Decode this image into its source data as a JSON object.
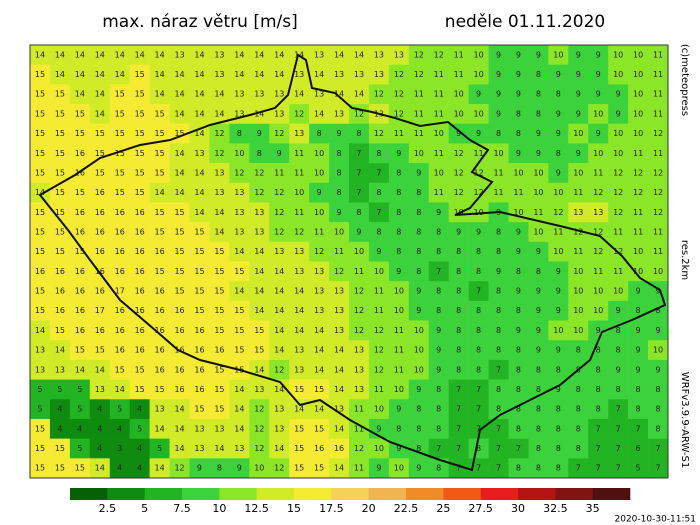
{
  "header": {
    "title": "max. náraz větru [m/s]",
    "date": "neděle 01.11.2020"
  },
  "side_labels": [
    "(c)meteopress",
    "res.2km",
    "WRFv3.9.9-ARW-S1"
  ],
  "timestamp": "2020-10-30-11:51",
  "colorbar": {
    "labels": [
      2.5,
      5,
      7.5,
      10,
      12.5,
      15,
      17.5,
      20,
      22.5,
      25,
      27.5,
      30,
      32.5,
      35
    ],
    "colors": [
      "#066006",
      "#0f8c0f",
      "#22b422",
      "#3cd23c",
      "#8ce628",
      "#d2eb28",
      "#f5eb32",
      "#f5d25a",
      "#f0b450",
      "#f08c28",
      "#f05a14",
      "#e61e1e",
      "#b41414",
      "#821414",
      "#501010"
    ]
  },
  "map": {
    "grid": [
      [
        14,
        14,
        14,
        14,
        14,
        14,
        14,
        13,
        14,
        13,
        14,
        14,
        14,
        14,
        13,
        14,
        14,
        13,
        13,
        12,
        12,
        11,
        10,
        9,
        9,
        9,
        10,
        9,
        9,
        10,
        10,
        11
      ],
      [
        15,
        14,
        14,
        14,
        14,
        15,
        14,
        14,
        14,
        13,
        14,
        14,
        14,
        13,
        14,
        13,
        13,
        13,
        12,
        12,
        11,
        11,
        10,
        9,
        9,
        8,
        9,
        9,
        9,
        10,
        10,
        11
      ],
      [
        15,
        15,
        14,
        14,
        15,
        15,
        14,
        14,
        14,
        14,
        13,
        13,
        13,
        14,
        13,
        14,
        14,
        12,
        12,
        11,
        11,
        10,
        9,
        9,
        9,
        8,
        8,
        9,
        9,
        9,
        10,
        11
      ],
      [
        15,
        15,
        15,
        14,
        15,
        15,
        15,
        14,
        14,
        14,
        13,
        14,
        13,
        12,
        14,
        13,
        12,
        13,
        12,
        11,
        11,
        10,
        10,
        9,
        8,
        8,
        9,
        9,
        10,
        9,
        10,
        11
      ],
      [
        15,
        15,
        15,
        15,
        15,
        15,
        15,
        15,
        14,
        12,
        8,
        9,
        12,
        13,
        8,
        9,
        8,
        12,
        11,
        11,
        10,
        9,
        9,
        8,
        8,
        9,
        9,
        10,
        9,
        10,
        10,
        12
      ],
      [
        15,
        15,
        16,
        15,
        15,
        15,
        15,
        14,
        13,
        12,
        10,
        8,
        9,
        11,
        10,
        8,
        7,
        8,
        9,
        10,
        11,
        12,
        11,
        10,
        9,
        9,
        8,
        9,
        10,
        10,
        11,
        11
      ],
      [
        15,
        15,
        16,
        15,
        15,
        15,
        15,
        14,
        14,
        13,
        12,
        12,
        11,
        11,
        10,
        8,
        7,
        7,
        8,
        9,
        10,
        12,
        12,
        11,
        10,
        10,
        9,
        10,
        11,
        12,
        12,
        12
      ],
      [
        14,
        15,
        15,
        16,
        15,
        15,
        14,
        14,
        14,
        13,
        13,
        12,
        12,
        10,
        9,
        8,
        7,
        8,
        8,
        8,
        11,
        12,
        12,
        11,
        11,
        10,
        10,
        11,
        12,
        12,
        12,
        12
      ],
      [
        15,
        15,
        16,
        16,
        16,
        16,
        15,
        15,
        14,
        14,
        13,
        13,
        12,
        11,
        10,
        9,
        8,
        7,
        8,
        8,
        9,
        10,
        10,
        9,
        10,
        11,
        12,
        13,
        13,
        12,
        11,
        12
      ],
      [
        15,
        15,
        16,
        16,
        16,
        16,
        15,
        15,
        15,
        14,
        13,
        13,
        12,
        12,
        11,
        10,
        9,
        8,
        8,
        8,
        8,
        9,
        9,
        8,
        9,
        10,
        11,
        12,
        12,
        11,
        11,
        11
      ],
      [
        15,
        15,
        15,
        16,
        16,
        16,
        16,
        15,
        15,
        15,
        14,
        14,
        13,
        13,
        12,
        11,
        10,
        9,
        8,
        8,
        8,
        8,
        8,
        8,
        9,
        9,
        10,
        11,
        12,
        12,
        10,
        11
      ],
      [
        16,
        16,
        16,
        16,
        16,
        16,
        15,
        15,
        15,
        15,
        15,
        14,
        14,
        13,
        13,
        12,
        11,
        10,
        9,
        8,
        7,
        8,
        8,
        9,
        8,
        8,
        9,
        10,
        11,
        11,
        10,
        10
      ],
      [
        15,
        16,
        16,
        16,
        17,
        16,
        16,
        15,
        15,
        15,
        14,
        14,
        14,
        14,
        13,
        13,
        12,
        11,
        10,
        9,
        8,
        8,
        7,
        8,
        9,
        9,
        9,
        10,
        10,
        10,
        9,
        9
      ],
      [
        15,
        16,
        16,
        17,
        16,
        16,
        16,
        16,
        15,
        15,
        15,
        14,
        14,
        14,
        13,
        13,
        12,
        11,
        10,
        9,
        8,
        8,
        8,
        8,
        8,
        9,
        9,
        10,
        10,
        9,
        8,
        8
      ],
      [
        14,
        15,
        16,
        16,
        16,
        16,
        16,
        16,
        16,
        15,
        15,
        15,
        14,
        14,
        14,
        13,
        12,
        12,
        11,
        10,
        9,
        8,
        8,
        8,
        9,
        9,
        10,
        10,
        9,
        8,
        9,
        9
      ],
      [
        13,
        14,
        15,
        15,
        16,
        16,
        16,
        16,
        16,
        16,
        15,
        15,
        14,
        13,
        14,
        14,
        13,
        12,
        11,
        10,
        9,
        8,
        8,
        8,
        8,
        9,
        9,
        8,
        8,
        8,
        9,
        10
      ],
      [
        13,
        13,
        14,
        14,
        15,
        15,
        16,
        16,
        16,
        15,
        15,
        14,
        12,
        13,
        14,
        14,
        13,
        12,
        11,
        10,
        9,
        8,
        8,
        7,
        8,
        8,
        8,
        8,
        8,
        9,
        9,
        9
      ],
      [
        5,
        5,
        5,
        13,
        14,
        15,
        15,
        16,
        16,
        15,
        14,
        13,
        14,
        15,
        15,
        14,
        13,
        11,
        10,
        9,
        8,
        7,
        7,
        8,
        8,
        8,
        9,
        8,
        8,
        8,
        8,
        8
      ],
      [
        5,
        4,
        5,
        4,
        5,
        4,
        13,
        14,
        15,
        15,
        14,
        12,
        13,
        14,
        14,
        13,
        11,
        10,
        9,
        8,
        8,
        7,
        7,
        8,
        8,
        8,
        8,
        8,
        8,
        7,
        8,
        8
      ],
      [
        15,
        4,
        4,
        4,
        4,
        5,
        14,
        14,
        13,
        13,
        14,
        12,
        13,
        15,
        15,
        14,
        11,
        9,
        8,
        8,
        8,
        7,
        7,
        7,
        8,
        8,
        8,
        8,
        7,
        7,
        7,
        8
      ],
      [
        15,
        15,
        5,
        4,
        3,
        4,
        5,
        14,
        13,
        14,
        13,
        12,
        14,
        15,
        16,
        16,
        12,
        10,
        9,
        8,
        7,
        7,
        8,
        7,
        7,
        8,
        8,
        8,
        7,
        7,
        6,
        7
      ],
      [
        15,
        15,
        15,
        14,
        4,
        4,
        14,
        12,
        9,
        8,
        9,
        10,
        12,
        15,
        15,
        14,
        11,
        9,
        10,
        9,
        8,
        7,
        7,
        7,
        8,
        8,
        8,
        7,
        7,
        7,
        5,
        7
      ]
    ]
  }
}
